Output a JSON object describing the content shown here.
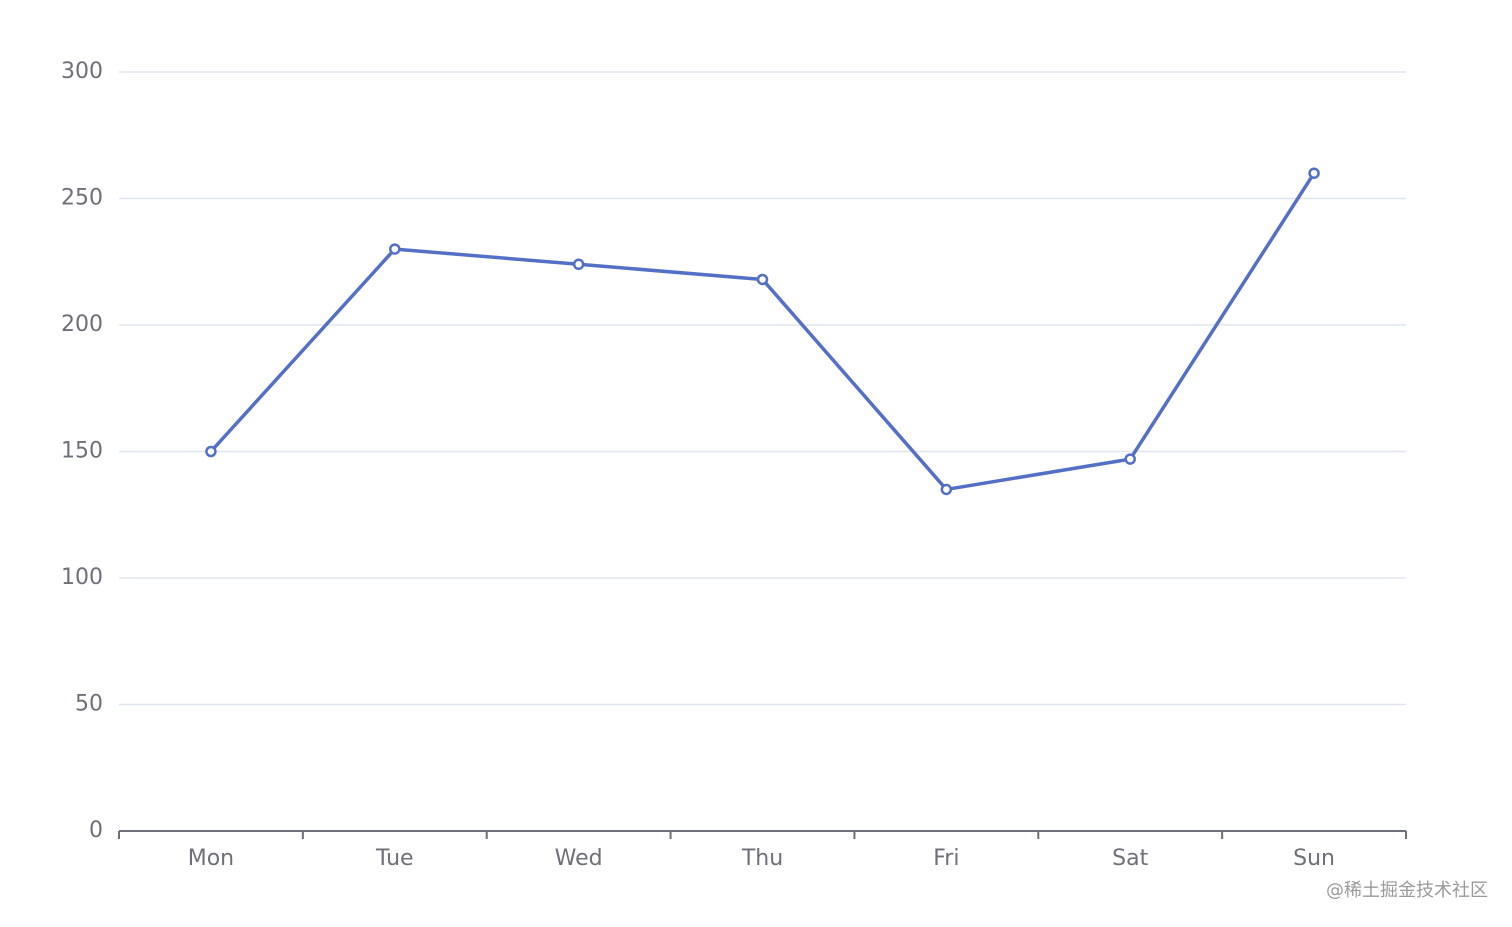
{
  "chart_data": {
    "type": "line",
    "categories": [
      "Mon",
      "Tue",
      "Wed",
      "Thu",
      "Fri",
      "Sat",
      "Sun"
    ],
    "series": [
      {
        "color": "#5470c6",
        "values": [
          150,
          230,
          224,
          218,
          135,
          147,
          260
        ]
      }
    ],
    "ylim": [
      0,
      300
    ],
    "yticks": [
      0,
      50,
      100,
      150,
      200,
      250,
      300
    ],
    "grid": true
  },
  "watermark": "@稀土掘金技术社区"
}
